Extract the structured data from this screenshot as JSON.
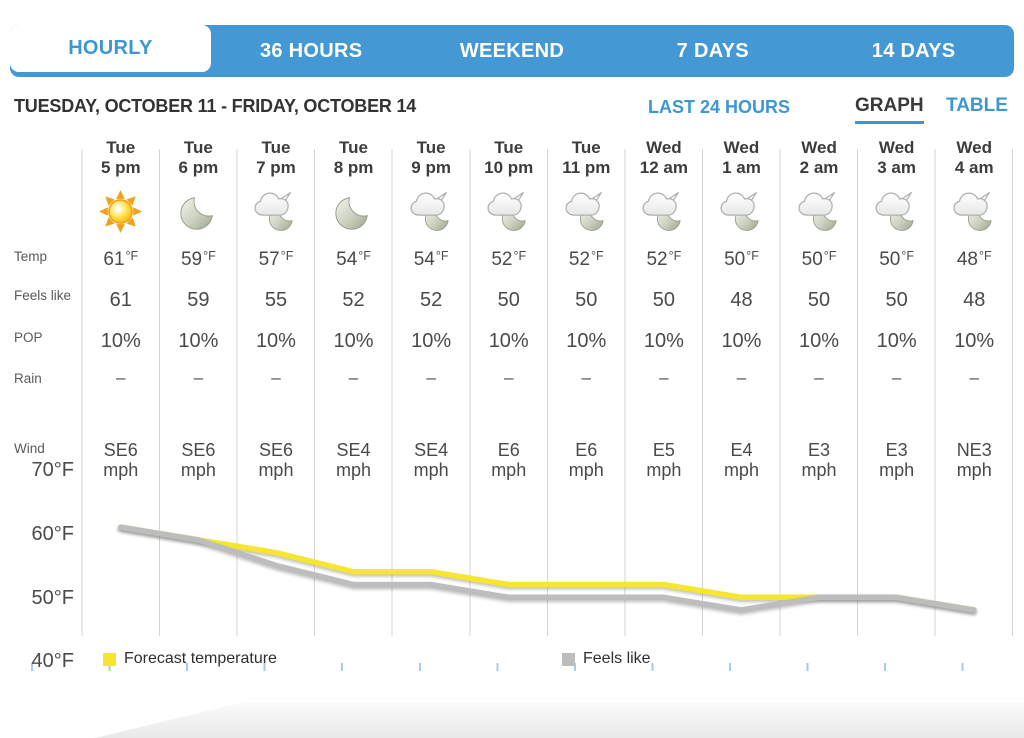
{
  "tabs": {
    "items": [
      {
        "label": "HOURLY",
        "active": true
      },
      {
        "label": "36 HOURS",
        "active": false
      },
      {
        "label": "WEEKEND",
        "active": false
      },
      {
        "label": "7 DAYS",
        "active": false
      },
      {
        "label": "14 DAYS",
        "active": false
      }
    ]
  },
  "header": {
    "title": "TUESDAY, OCTOBER 11 - FRIDAY, OCTOBER 14",
    "last_24_hours": "LAST 24 HOURS",
    "graph": "GRAPH",
    "table": "TABLE"
  },
  "row_labels": {
    "temp": "Temp",
    "feels": "Feels like",
    "pop": "POP",
    "rain": "Rain",
    "wind": "Wind"
  },
  "columns": [
    {
      "day": "Tue",
      "hour": "5 pm",
      "icon": "sun",
      "temp": "61",
      "temp_unit": "°F",
      "feels": "61",
      "pop": "10%",
      "rain": "–",
      "wind_speed": "SE6",
      "wind_unit": "mph"
    },
    {
      "day": "Tue",
      "hour": "6 pm",
      "icon": "moon",
      "temp": "59",
      "temp_unit": "°F",
      "feels": "59",
      "pop": "10%",
      "rain": "–",
      "wind_speed": "SE6",
      "wind_unit": "mph"
    },
    {
      "day": "Tue",
      "hour": "7 pm",
      "icon": "cloud-moon",
      "temp": "57",
      "temp_unit": "°F",
      "feels": "55",
      "pop": "10%",
      "rain": "–",
      "wind_speed": "SE6",
      "wind_unit": "mph"
    },
    {
      "day": "Tue",
      "hour": "8 pm",
      "icon": "moon",
      "temp": "54",
      "temp_unit": "°F",
      "feels": "52",
      "pop": "10%",
      "rain": "–",
      "wind_speed": "SE4",
      "wind_unit": "mph"
    },
    {
      "day": "Tue",
      "hour": "9 pm",
      "icon": "cloud-moon",
      "temp": "54",
      "temp_unit": "°F",
      "feels": "52",
      "pop": "10%",
      "rain": "–",
      "wind_speed": "SE4",
      "wind_unit": "mph"
    },
    {
      "day": "Tue",
      "hour": "10 pm",
      "icon": "cloud-moon",
      "temp": "52",
      "temp_unit": "°F",
      "feels": "50",
      "pop": "10%",
      "rain": "–",
      "wind_speed": "E6",
      "wind_unit": "mph"
    },
    {
      "day": "Tue",
      "hour": "11 pm",
      "icon": "cloud-moon",
      "temp": "52",
      "temp_unit": "°F",
      "feels": "50",
      "pop": "10%",
      "rain": "–",
      "wind_speed": "E6",
      "wind_unit": "mph"
    },
    {
      "day": "Wed",
      "hour": "12 am",
      "icon": "cloud-moon",
      "temp": "52",
      "temp_unit": "°F",
      "feels": "50",
      "pop": "10%",
      "rain": "–",
      "wind_speed": "E5",
      "wind_unit": "mph"
    },
    {
      "day": "Wed",
      "hour": "1 am",
      "icon": "cloud-moon",
      "temp": "50",
      "temp_unit": "°F",
      "feels": "48",
      "pop": "10%",
      "rain": "–",
      "wind_speed": "E4",
      "wind_unit": "mph"
    },
    {
      "day": "Wed",
      "hour": "2 am",
      "icon": "cloud-moon",
      "temp": "50",
      "temp_unit": "°F",
      "feels": "50",
      "pop": "10%",
      "rain": "–",
      "wind_speed": "E3",
      "wind_unit": "mph"
    },
    {
      "day": "Wed",
      "hour": "3 am",
      "icon": "cloud-moon",
      "temp": "50",
      "temp_unit": "°F",
      "feels": "50",
      "pop": "10%",
      "rain": "–",
      "wind_speed": "E3",
      "wind_unit": "mph"
    },
    {
      "day": "Wed",
      "hour": "4 am",
      "icon": "cloud-moon",
      "temp": "48",
      "temp_unit": "°F",
      "feels": "48",
      "pop": "10%",
      "rain": "–",
      "wind_speed": "NE3",
      "wind_unit": "mph"
    }
  ],
  "legend": {
    "temp_label": "Forecast temperature",
    "feels_label": "Feels like"
  },
  "chart_data": {
    "type": "line",
    "x_categories": [
      "Tue 5 pm",
      "Tue 6 pm",
      "Tue 7 pm",
      "Tue 8 pm",
      "Tue 9 pm",
      "Tue 10 pm",
      "Tue 11 pm",
      "Wed 12 am",
      "Wed 1 am",
      "Wed 2 am",
      "Wed 3 am",
      "Wed 4 am"
    ],
    "series": [
      {
        "name": "Forecast temperature",
        "color": "#F6E62F",
        "values": [
          61,
          59,
          57,
          54,
          54,
          52,
          52,
          52,
          50,
          50,
          50,
          48
        ]
      },
      {
        "name": "Feels like",
        "color": "#BDBDBD",
        "values": [
          61,
          59,
          55,
          52,
          52,
          50,
          50,
          50,
          48,
          50,
          50,
          48
        ]
      }
    ],
    "y_ticks": [
      "70°F",
      "60°F",
      "50°F",
      "40°F"
    ],
    "ylim": [
      40,
      70
    ],
    "grid": "vertical",
    "legend_position": "bottom"
  },
  "colors": {
    "accent_blue": "#4499D4",
    "link_blue": "#3E97D2",
    "temp_line_yellow": "#F6E62F",
    "feels_line_gray": "#BDBDBD"
  }
}
